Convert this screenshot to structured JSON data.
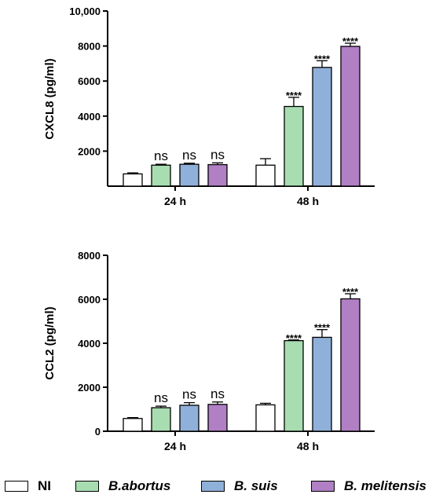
{
  "chart_data": [
    {
      "type": "bar",
      "title": "",
      "ylabel": "CXCL8 (pg/ml)",
      "xlabel": "",
      "ylim": [
        0,
        10000
      ],
      "yticks": [
        2000,
        4000,
        6000,
        8000,
        10000
      ],
      "ytick_labels": [
        "2000",
        "4000",
        "6000",
        "8000",
        "10,000"
      ],
      "categories": [
        "24 h",
        "48 h"
      ],
      "series": [
        {
          "name": "NI",
          "values": [
            700,
            1200
          ],
          "errors": [
            60,
            370
          ],
          "significance": [
            "",
            ""
          ]
        },
        {
          "name": "B.abortus",
          "values": [
            1200,
            4550
          ],
          "errors": [
            50,
            520
          ],
          "significance": [
            "ns",
            "****"
          ]
        },
        {
          "name": "B. suis",
          "values": [
            1250,
            6780
          ],
          "errors": [
            60,
            380
          ],
          "significance": [
            "ns",
            "****"
          ]
        },
        {
          "name": "B. melitensis",
          "values": [
            1230,
            7980
          ],
          "errors": [
            100,
            180
          ],
          "significance": [
            "ns",
            "****"
          ]
        }
      ]
    },
    {
      "type": "bar",
      "title": "",
      "ylabel": "CCL2 (pg/ml)",
      "xlabel": "",
      "ylim": [
        0,
        8000
      ],
      "yticks": [
        0,
        2000,
        4000,
        6000,
        8000
      ],
      "ytick_labels": [
        "0",
        "2000",
        "4000",
        "6000",
        "8000"
      ],
      "categories": [
        "24 h",
        "48 h"
      ],
      "series": [
        {
          "name": "NI",
          "values": [
            580,
            1200
          ],
          "errors": [
            40,
            70
          ],
          "significance": [
            "",
            ""
          ]
        },
        {
          "name": "B.abortus",
          "values": [
            1070,
            4120
          ],
          "errors": [
            70,
            30
          ],
          "significance": [
            "ns",
            "****"
          ]
        },
        {
          "name": "B. suis",
          "values": [
            1180,
            4270
          ],
          "errors": [
            120,
            350
          ],
          "significance": [
            "ns",
            "****"
          ]
        },
        {
          "name": "B. melitensis",
          "values": [
            1220,
            6020
          ],
          "errors": [
            110,
            230
          ],
          "significance": [
            "ns",
            "****"
          ]
        }
      ]
    }
  ],
  "colors": {
    "NI": "#ffffff",
    "B.abortus": "#a8ddb2",
    "B. suis": "#8fb0d8",
    "B. melitensis": "#b07fc4",
    "axis": "#000000"
  },
  "legend": {
    "position": "bottom",
    "items": [
      {
        "label": "NI",
        "color": "#ffffff",
        "italic": false
      },
      {
        "label": "B.abortus",
        "color": "#a8ddb2",
        "italic": true
      },
      {
        "label": "B. suis",
        "color": "#8fb0d8",
        "italic": true
      },
      {
        "label": "B. melitensis",
        "color": "#b07fc4",
        "italic": true
      }
    ]
  }
}
